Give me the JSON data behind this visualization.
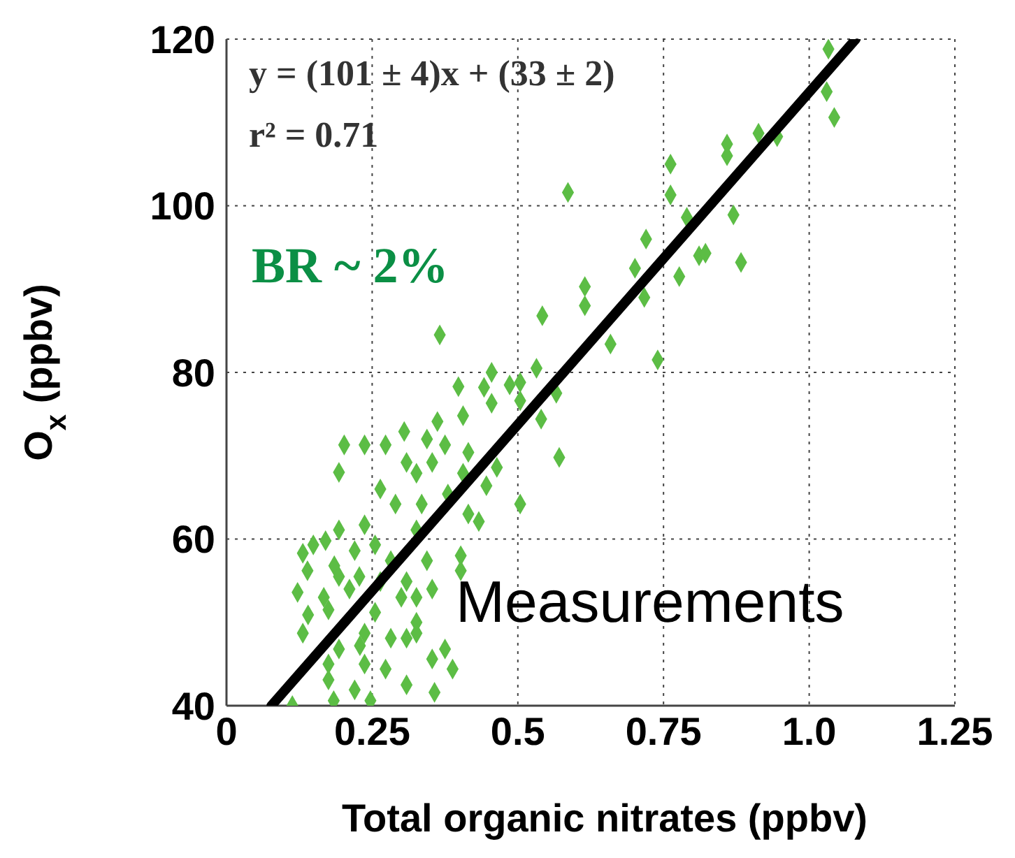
{
  "chart_data": {
    "type": "scatter",
    "xlabel": "Total organic nitrates (ppbv)",
    "ylabel": "O$_{x}$ (ppbv)",
    "xlim": [
      0,
      1.25
    ],
    "xticks": [
      0,
      0.25,
      0.5,
      0.75,
      {
        "value": 1,
        "label": "1.0"
      },
      1.25
    ],
    "ylim": [
      40,
      120
    ],
    "yticks": [
      40,
      60,
      80,
      100,
      120
    ],
    "grid": true,
    "annotations": [
      "y = (101 ± 4)x + (33 ± 2)",
      "r² = 0.71",
      "BR ~ 2%",
      "Measurements"
    ],
    "series": [
      {
        "marker": "diamond",
        "color": "#5cbd45",
        "x": [
          1.033,
          1.03,
          1.043,
          0.913,
          0.945,
          0.859,
          0.859,
          0.762,
          0.762,
          0.586,
          0.79,
          0.87,
          0.72,
          0.811,
          0.822,
          0.883,
          0.777,
          0.701,
          0.717,
          0.615,
          0.615,
          0.542,
          0.366,
          0.659,
          0.74,
          0.532,
          0.455,
          0.398,
          0.486,
          0.504,
          0.442,
          0.455,
          0.504,
          0.566,
          0.54,
          0.202,
          0.237,
          0.273,
          0.305,
          0.344,
          0.362,
          0.406,
          0.375,
          0.193,
          0.415,
          0.464,
          0.571,
          0.326,
          0.264,
          0.29,
          0.446,
          0.504,
          0.415,
          0.433,
          0.193,
          0.237,
          0.326,
          0.17,
          0.131,
          0.22,
          0.255,
          0.344,
          0.402,
          0.402,
          0.139,
          0.185,
          0.228,
          0.122,
          0.167,
          0.211,
          0.264,
          0.309,
          0.353,
          0.326,
          0.14,
          0.175,
          0.131,
          0.255,
          0.3,
          0.326,
          0.237,
          0.282,
          0.193,
          0.229,
          0.309,
          0.326,
          0.375,
          0.353,
          0.388,
          0.175,
          0.237,
          0.273,
          0.309,
          0.175,
          0.22,
          0.247,
          0.357,
          0.113,
          0.184,
          0.149,
          0.193,
          0.282,
          0.335,
          0.38,
          0.353,
          0.309,
          0.406
        ],
        "values": [
          118.8,
          113.7,
          110.6,
          108.7,
          108.3,
          107.4,
          106,
          105,
          101.3,
          101.6,
          98.6,
          98.9,
          96,
          94,
          94.3,
          93.2,
          91.5,
          92.5,
          89,
          90.3,
          88,
          86.8,
          84.5,
          83.4,
          81.5,
          80.5,
          80,
          78.3,
          78.5,
          78.8,
          78.2,
          76.3,
          76.6,
          77.5,
          74.4,
          71.3,
          71.3,
          71.3,
          72.9,
          72,
          74.1,
          74.8,
          71.3,
          68,
          70.4,
          68.6,
          69.8,
          67.9,
          66,
          64.2,
          66.4,
          64.2,
          63,
          62.1,
          61.1,
          61.7,
          61.1,
          59.8,
          58.3,
          58.6,
          59.3,
          57.4,
          58,
          56.2,
          56.2,
          56.8,
          55.5,
          53.6,
          53,
          54,
          54.9,
          54.9,
          54,
          53,
          50.9,
          51.5,
          48.7,
          51.2,
          53,
          50,
          48.7,
          48.1,
          46.8,
          47.2,
          48.1,
          48.7,
          46.8,
          45.6,
          44.4,
          45,
          45,
          44.4,
          42.5,
          43.1,
          41.9,
          40.6,
          41.6,
          40,
          40.6,
          59.3,
          55.5,
          57.4,
          64.2,
          65.4,
          69.2,
          69.2,
          67.9
        ]
      },
      {
        "type": "line",
        "marker": "none",
        "color": "#000000",
        "x": [
          0.077,
          1.08
        ],
        "values": [
          40,
          120
        ]
      }
    ]
  }
}
